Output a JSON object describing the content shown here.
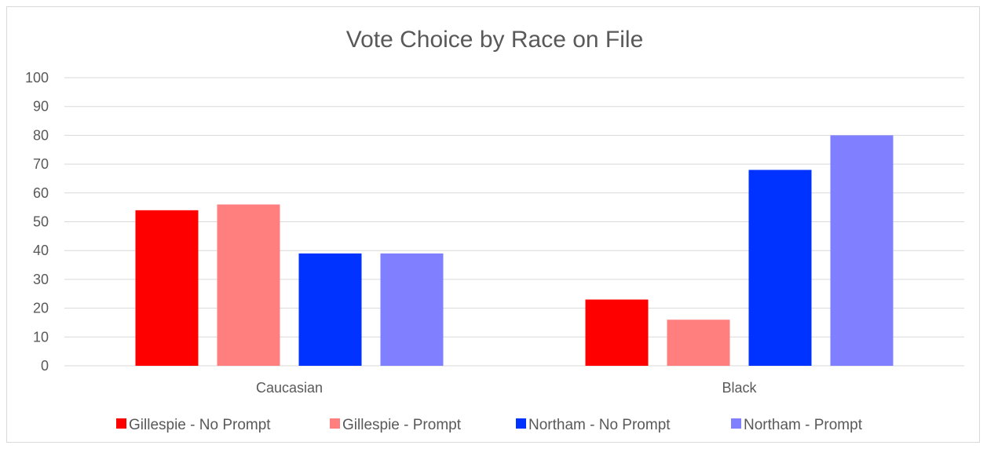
{
  "chart_data": {
    "type": "bar",
    "title": "Vote Choice by Race on File",
    "xlabel": "",
    "ylabel": "",
    "ylim": [
      0,
      100
    ],
    "yticks": [
      0,
      10,
      20,
      30,
      40,
      50,
      60,
      70,
      80,
      90,
      100
    ],
    "categories": [
      "Caucasian",
      "Black"
    ],
    "series": [
      {
        "name": "Gillespie - No Prompt",
        "color": "#ff0000",
        "values": [
          54,
          23
        ]
      },
      {
        "name": "Gillespie - Prompt",
        "color": "#ff7f7f",
        "values": [
          56,
          16
        ]
      },
      {
        "name": "Northam - No Prompt",
        "color": "#0033ff",
        "values": [
          39,
          68
        ]
      },
      {
        "name": "Northam - Prompt",
        "color": "#7f7fff",
        "values": [
          39,
          80
        ]
      }
    ],
    "grid": true,
    "legend_position": "bottom"
  }
}
